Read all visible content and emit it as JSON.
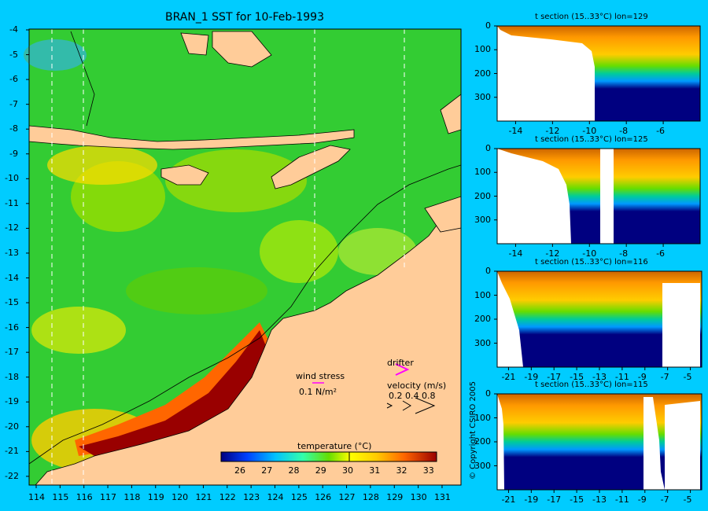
{
  "map": {
    "title": "BRAN_1 SST for 10-Feb-1993",
    "lon_ticks": [
      "114",
      "115",
      "116",
      "117",
      "118",
      "119",
      "120",
      "121",
      "122",
      "123",
      "124",
      "125",
      "126",
      "127",
      "128",
      "129",
      "130",
      "131"
    ],
    "lat_ticks": [
      "-4",
      "-5",
      "-6",
      "-7",
      "-8",
      "-9",
      "-10",
      "-11",
      "-12",
      "-13",
      "-14",
      "-15",
      "-16",
      "-17",
      "-18",
      "-19",
      "-20",
      "-21",
      "-22"
    ],
    "wind_stress_label": "wind stress",
    "wind_stress_value": "0.1 N/m²",
    "drifter_label": "drifter",
    "velocity_label": "velocity (m/s)",
    "velocity_values": "0.2 0.4 0.8",
    "colorbar_label": "temperature (°C)",
    "colorbar_ticks": [
      "26",
      "27",
      "28",
      "29",
      "30",
      "31",
      "32",
      "33"
    ],
    "colors": {
      "land": "#ffcc99",
      "sea_green": "#33cc33",
      "warm": "#ffcc00",
      "hot": "#990000",
      "cold": "#000080",
      "drifter": "#ff00ff"
    }
  },
  "sections": [
    {
      "title": "t section (15..33°C) lon=129",
      "x_ticks": [
        "-14",
        "-12",
        "-10",
        "-8",
        "-6"
      ],
      "y_ticks": [
        "0",
        "100",
        "200",
        "300"
      ]
    },
    {
      "title": "t section (15..33°C) lon=125",
      "x_ticks": [
        "-14",
        "-12",
        "-10",
        "-8",
        "-6"
      ],
      "y_ticks": [
        "0",
        "100",
        "200",
        "300"
      ]
    },
    {
      "title": "t section (15..33°C) lon=116",
      "x_ticks": [
        "-21",
        "-19",
        "-17",
        "-15",
        "-13",
        "-11",
        "-9",
        "-7",
        "-5"
      ],
      "y_ticks": [
        "0",
        "100",
        "200",
        "300"
      ]
    },
    {
      "title": "t section (15..33°C) lon=115",
      "x_ticks": [
        "-21",
        "-19",
        "-17",
        "-15",
        "-13",
        "-11",
        "-9",
        "-7",
        "-5"
      ],
      "y_ticks": [
        "0",
        "100",
        "200",
        "300"
      ]
    }
  ],
  "copyright": "© Copyright CSIRO 2005",
  "chart_data": [
    {
      "type": "heatmap",
      "title": "BRAN_1 SST for 10-Feb-1993",
      "x_range": [
        113.5,
        131.3
      ],
      "y_range": [
        -22.5,
        -4
      ],
      "colorbar": {
        "label": "temperature (°C)",
        "range": [
          25.3,
          33.3
        ],
        "ticks": [
          26,
          27,
          28,
          29,
          30,
          31,
          32,
          33
        ]
      }
    },
    {
      "type": "heatmap",
      "title": "t section (15..33°C) lon=129",
      "x_range": [
        -15,
        -4
      ],
      "y_range": [
        0,
        400
      ]
    },
    {
      "type": "heatmap",
      "title": "t section (15..33°C) lon=125",
      "x_range": [
        -15,
        -4
      ],
      "y_range": [
        0,
        400
      ]
    },
    {
      "type": "heatmap",
      "title": "t section (15..33°C) lon=116",
      "x_range": [
        -22,
        -4
      ],
      "y_range": [
        0,
        400
      ]
    },
    {
      "type": "heatmap",
      "title": "t section (15..33°C) lon=115",
      "x_range": [
        -22,
        -4
      ],
      "y_range": [
        0,
        400
      ]
    }
  ]
}
